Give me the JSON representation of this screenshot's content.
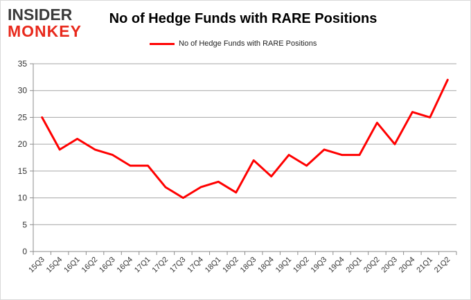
{
  "brand": {
    "line1": "INSIDER",
    "line2": "MONKEY"
  },
  "chart_data": {
    "type": "line",
    "title": "No of Hedge Funds with RARE Positions",
    "categories": [
      "15Q3",
      "15Q4",
      "16Q1",
      "16Q2",
      "16Q3",
      "16Q4",
      "17Q1",
      "17Q2",
      "17Q3",
      "17Q4",
      "18Q1",
      "18Q2",
      "18Q3",
      "18Q4",
      "19Q1",
      "19Q2",
      "19Q3",
      "19Q4",
      "20Q1",
      "20Q2",
      "20Q3",
      "20Q4",
      "21Q1",
      "21Q2"
    ],
    "series": [
      {
        "name": "No of Hedge Funds with RARE Positions",
        "color": "#ff0000",
        "values": [
          25,
          19,
          21,
          19,
          18,
          16,
          16,
          12,
          10,
          12,
          13,
          11,
          17,
          14,
          18,
          16,
          19,
          18,
          18,
          24,
          20,
          26,
          25,
          32
        ]
      }
    ],
    "ylim": [
      0,
      35
    ],
    "yticks": [
      0,
      5,
      10,
      15,
      20,
      25,
      30,
      35
    ],
    "grid": true,
    "legend_position": "top-center",
    "xlabel": "",
    "ylabel": ""
  }
}
